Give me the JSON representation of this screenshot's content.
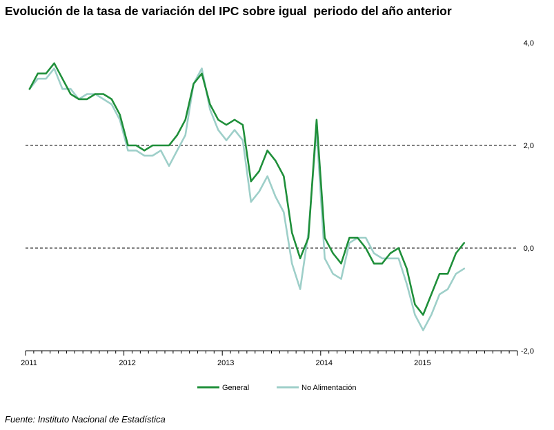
{
  "title": "Evolución de la tasa de variación del IPC sobre igual  periodo del año anterior",
  "source": "Fuente: Instituto Nacional de Estadística",
  "chart_data": {
    "type": "line",
    "title": "Evolución de la tasa de variación del IPC sobre igual  periodo del año anterior",
    "x_start": "2011-01",
    "x_end": "2015-12",
    "x_ticks": [
      "2011",
      "2012",
      "2013",
      "2014",
      "2015"
    ],
    "y_ticks": [
      "4,0",
      "2,0",
      "0,0",
      "-2,0"
    ],
    "ylim": [
      -2.0,
      4.0
    ],
    "reference_lines": [
      2.0,
      0.0
    ],
    "y_axis_position": "right",
    "legend_position": "bottom",
    "series": [
      {
        "name": "General",
        "color": "#1f8f3a",
        "x": [
          "2011-01",
          "2011-02",
          "2011-03",
          "2011-04",
          "2011-05",
          "2011-06",
          "2011-07",
          "2011-08",
          "2011-09",
          "2011-10",
          "2011-11",
          "2011-12",
          "2012-01",
          "2012-02",
          "2012-03",
          "2012-04",
          "2012-05",
          "2012-06",
          "2012-07",
          "2012-08",
          "2012-09",
          "2012-10",
          "2012-11",
          "2012-12",
          "2013-01",
          "2013-02",
          "2013-03",
          "2013-04",
          "2013-05",
          "2013-06",
          "2013-07",
          "2013-08",
          "2013-09",
          "2013-10",
          "2013-11",
          "2013-12",
          "2014-01",
          "2014-02",
          "2014-03",
          "2014-04",
          "2014-05",
          "2014-06",
          "2014-07",
          "2014-08",
          "2014-09",
          "2014-10",
          "2014-11",
          "2014-12",
          "2015-01",
          "2015-02",
          "2015-03",
          "2015-04",
          "2015-05",
          "2015-06"
        ],
        "values": [
          3.1,
          3.4,
          3.4,
          3.6,
          3.3,
          3.0,
          2.9,
          2.9,
          3.0,
          3.0,
          2.9,
          2.6,
          2.0,
          2.0,
          1.9,
          2.0,
          2.0,
          2.0,
          2.2,
          2.5,
          3.2,
          3.4,
          2.8,
          2.5,
          2.4,
          2.5,
          2.4,
          1.3,
          1.5,
          1.9,
          1.7,
          1.4,
          0.3,
          -0.2,
          0.2,
          2.5,
          0.2,
          -0.1,
          -0.3,
          0.2,
          0.2,
          0.0,
          -0.3,
          -0.3,
          -0.1,
          0.0,
          -0.4,
          -1.1,
          -1.3,
          -0.9,
          -0.5,
          -0.5,
          -0.1,
          0.1
        ]
      },
      {
        "name": "No Alimentación",
        "color": "#9ecfc9",
        "x": [
          "2011-01",
          "2011-02",
          "2011-03",
          "2011-04",
          "2011-05",
          "2011-06",
          "2011-07",
          "2011-08",
          "2011-09",
          "2011-10",
          "2011-11",
          "2011-12",
          "2012-01",
          "2012-02",
          "2012-03",
          "2012-04",
          "2012-05",
          "2012-06",
          "2012-07",
          "2012-08",
          "2012-09",
          "2012-10",
          "2012-11",
          "2012-12",
          "2013-01",
          "2013-02",
          "2013-03",
          "2013-04",
          "2013-05",
          "2013-06",
          "2013-07",
          "2013-08",
          "2013-09",
          "2013-10",
          "2013-11",
          "2013-12",
          "2014-01",
          "2014-02",
          "2014-03",
          "2014-04",
          "2014-05",
          "2014-06",
          "2014-07",
          "2014-08",
          "2014-09",
          "2014-10",
          "2014-11",
          "2014-12",
          "2015-01",
          "2015-02",
          "2015-03",
          "2015-04",
          "2015-05",
          "2015-06"
        ],
        "values": [
          3.1,
          3.3,
          3.3,
          3.5,
          3.1,
          3.1,
          2.9,
          3.0,
          3.0,
          2.9,
          2.8,
          2.5,
          1.9,
          1.9,
          1.8,
          1.8,
          1.9,
          1.6,
          1.9,
          2.2,
          3.2,
          3.5,
          2.7,
          2.3,
          2.1,
          2.3,
          2.1,
          0.9,
          1.1,
          1.4,
          1.0,
          0.7,
          -0.3,
          -0.8,
          0.3,
          2.3,
          -0.2,
          -0.5,
          -0.6,
          0.1,
          0.2,
          0.2,
          -0.1,
          -0.2,
          -0.2,
          -0.2,
          -0.7,
          -1.3,
          -1.6,
          -1.3,
          -0.9,
          -0.8,
          -0.5,
          -0.4
        ]
      }
    ]
  }
}
